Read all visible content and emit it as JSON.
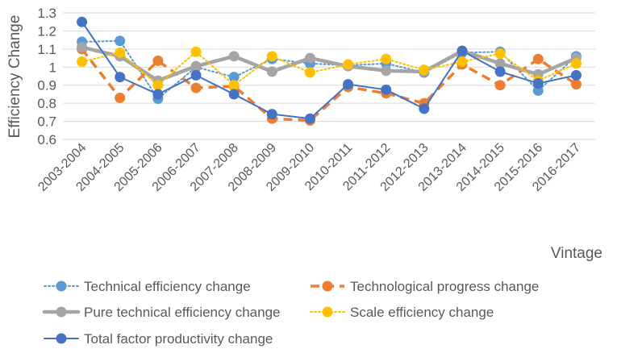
{
  "chart_data": {
    "type": "line",
    "title": "",
    "ylabel": "Efficiency Change",
    "xlabel": "Vintage",
    "ylim": [
      0.6,
      1.3
    ],
    "yticks": [
      "0.6",
      "0.7",
      "0.8",
      "0.9",
      "1",
      "1.1",
      "1.2",
      "1.3"
    ],
    "ytick_values": [
      0.6,
      0.7,
      0.8,
      0.9,
      1.0,
      1.1,
      1.2,
      1.3
    ],
    "grid": true,
    "legend_position": "bottom",
    "categories": [
      "2003-2004",
      "2004-2005",
      "2005-2006",
      "2006-2007",
      "2007-2008",
      "2008-2009",
      "2009-2010",
      "2010-2011",
      "2011-2012",
      "2012-2013",
      "2013-2014",
      "2014-2015",
      "2015-2016",
      "2016-2017"
    ],
    "series": [
      {
        "name": "Technical efficiency change",
        "color": "#5b9bd5",
        "style": "dotted",
        "values": [
          1.14,
          1.145,
          0.825,
          1.0,
          0.945,
          1.045,
          1.02,
          1.01,
          1.02,
          0.97,
          1.08,
          1.085,
          0.87,
          1.06
        ]
      },
      {
        "name": "Technological progress change",
        "color": "#ed7d31",
        "style": "dashed",
        "values": [
          1.1,
          0.83,
          1.035,
          0.885,
          0.895,
          0.715,
          0.705,
          0.89,
          0.855,
          0.8,
          1.015,
          0.9,
          1.045,
          0.905
        ]
      },
      {
        "name": "Pure technical efficiency change",
        "color": "#a5a5a5",
        "style": "thick",
        "values": [
          1.11,
          1.06,
          0.925,
          1.005,
          1.06,
          0.975,
          1.05,
          1.005,
          0.98,
          0.975,
          1.09,
          1.02,
          0.96,
          1.05
        ]
      },
      {
        "name": "Scale efficiency change",
        "color": "#ffc000",
        "style": "dotted",
        "values": [
          1.03,
          1.08,
          0.9,
          1.085,
          0.9,
          1.06,
          0.97,
          1.015,
          1.045,
          0.985,
          1.03,
          1.075,
          0.925,
          1.02
        ]
      },
      {
        "name": "Total factor productivity change",
        "color": "#4472c4",
        "style": "solid",
        "values": [
          1.25,
          0.945,
          0.85,
          0.955,
          0.85,
          0.74,
          0.715,
          0.905,
          0.875,
          0.77,
          1.09,
          0.975,
          0.91,
          0.955
        ]
      }
    ]
  }
}
